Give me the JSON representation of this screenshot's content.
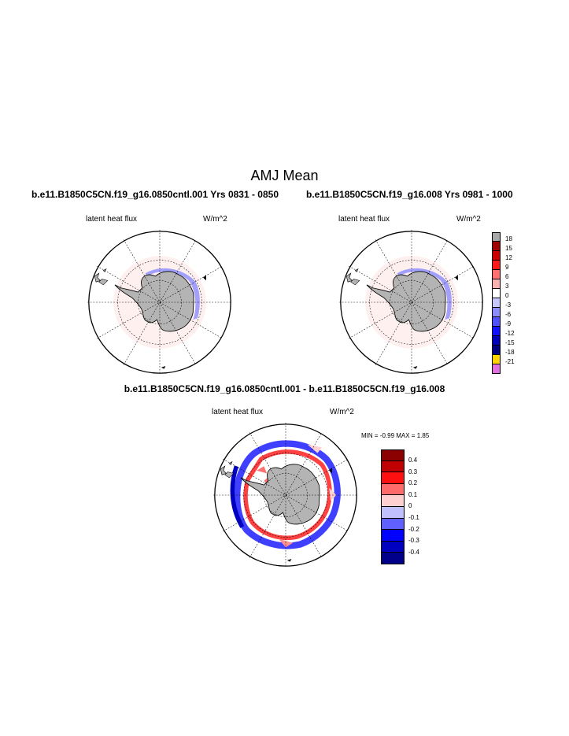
{
  "page": {
    "title": "AMJ Mean",
    "case_left": "b.e11.B1850C5CN.f19_g16.0850cntl.001  Yrs 0831 - 0850",
    "case_right": "b.e11.B1850C5CN.f19_g16.008  Yrs 0981 - 1000",
    "diff_title": "b.e11.B1850C5CN.f19_g16.0850cntl.001 - b.e11.B1850C5CN.f19_g16.008"
  },
  "panels": {
    "left": {
      "variable": "latent heat flux",
      "units": "W/m^2"
    },
    "right": {
      "variable": "latent heat flux",
      "units": "W/m^2"
    },
    "diff": {
      "variable": "latent heat flux",
      "units": "W/m^2",
      "stats": "MIN =  -0.99 MAX =   1.85"
    }
  },
  "colorbar_main": {
    "labels": [
      "18",
      "15",
      "12",
      "9",
      "6",
      "3",
      "0",
      "-3",
      "-6",
      "-9",
      "-12",
      "-15",
      "-18",
      "-21"
    ],
    "colors": [
      "#a8a8a8",
      "#a00000",
      "#cc0000",
      "#ff1a1a",
      "#ff7070",
      "#ffb0b0",
      "#ffffff",
      "#c8c8ff",
      "#8c8cff",
      "#5050ff",
      "#1010ff",
      "#0000bb",
      "#000080",
      "#ffd400",
      "#e070e0"
    ]
  },
  "colorbar_diff": {
    "labels": [
      "0.4",
      "0.3",
      "0.2",
      "0.1",
      "0",
      "-0.1",
      "-0.2",
      "-0.3",
      "-0.4"
    ],
    "colors": [
      "#8b0000",
      "#c00000",
      "#ff1010",
      "#ff6a6a",
      "#ffd0d0",
      "#c0c0ff",
      "#6060ff",
      "#0000ff",
      "#0000c0",
      "#00008b"
    ]
  },
  "colors": {
    "land": "#b4b4b4",
    "ocean": "#ffffff"
  }
}
